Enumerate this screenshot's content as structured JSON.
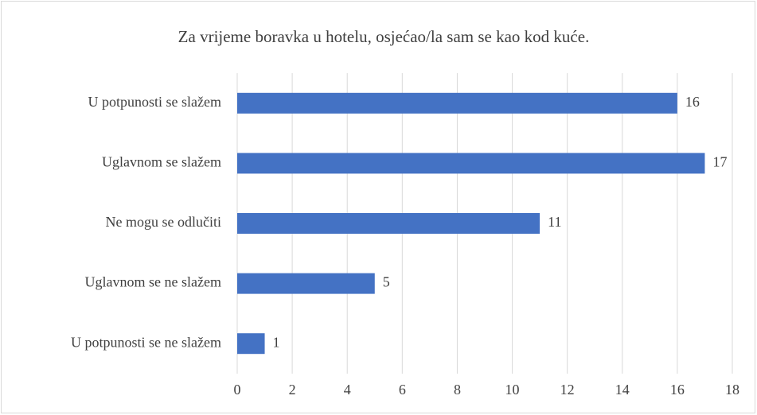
{
  "chart_data": {
    "type": "bar",
    "orientation": "horizontal",
    "title": "Za vrijeme boravka u hotelu, osjećao/la sam se kao kod kuće.",
    "categories": [
      "U potpunosti se slažem",
      "Uglavnom se slažem",
      "Ne mogu se odlučiti",
      "Uglavnom se ne slažem",
      "U potpunosti se ne slažem"
    ],
    "values": [
      16,
      17,
      11,
      5,
      1
    ],
    "color": "#4472c4",
    "xlim": [
      0,
      18
    ],
    "xticks": [
      0,
      2,
      4,
      6,
      8,
      10,
      12,
      14,
      16,
      18
    ],
    "grid": true,
    "data_labels": true
  }
}
